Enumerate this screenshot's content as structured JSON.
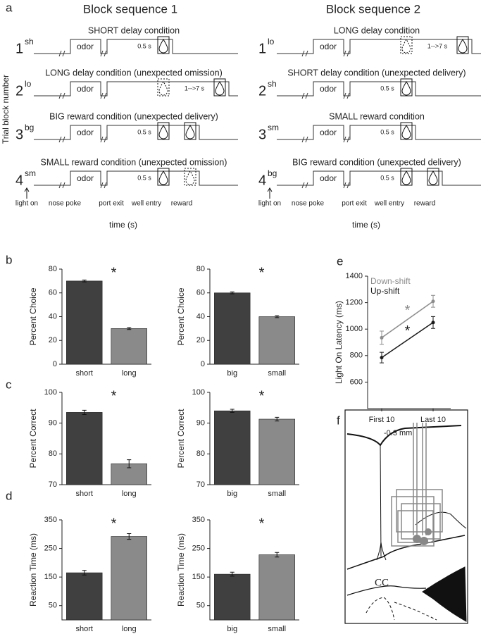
{
  "panel_labels": [
    "a",
    "b",
    "c",
    "d",
    "e",
    "f"
  ],
  "block_diagram": {
    "y_label": "Trial block number",
    "odor": "odor",
    "short_delay": "0.5 s",
    "long_delay": "1-->7 s",
    "event_labels": [
      "light on",
      "nose poke",
      "port exit",
      "well entry",
      "reward"
    ],
    "x_label": "time (s)",
    "sequences": [
      {
        "title": "Block sequence 1",
        "rows": [
          {
            "number": "1",
            "block": "sh",
            "condition": "SHORT delay condition"
          },
          {
            "number": "2",
            "block": "lo",
            "condition": "LONG delay condition (unexpected omission)"
          },
          {
            "number": "3",
            "block": "bg",
            "condition": "BIG reward condition (unexpected delivery)"
          },
          {
            "number": "4",
            "block": "sm",
            "condition": "SMALL reward condition (unexpected omission)"
          }
        ]
      },
      {
        "title": "Block sequence 2",
        "rows": [
          {
            "number": "1",
            "block": "lo",
            "condition": "LONG delay condition"
          },
          {
            "number": "2",
            "block": "sh",
            "condition": "SHORT delay condition (unexpected delivery)"
          },
          {
            "number": "3",
            "block": "sm",
            "condition": "SMALL reward condition"
          },
          {
            "number": "4",
            "block": "bg",
            "condition": "BIG reward condition (unexpected delivery)"
          }
        ]
      }
    ]
  },
  "chart_data": [
    {
      "type": "bar",
      "y_label": "Percent Choice",
      "categories": [
        "short",
        "long"
      ],
      "values": [
        70,
        30
      ],
      "errors": [
        0.8,
        0.8
      ],
      "colors": [
        "#404040",
        "#8a8a8a"
      ],
      "ylim": [
        0,
        80
      ],
      "yticks": [
        0,
        20,
        40,
        60,
        80
      ],
      "annotation": "*"
    },
    {
      "type": "bar",
      "y_label": "Percent Choice",
      "categories": [
        "big",
        "small"
      ],
      "values": [
        60,
        40
      ],
      "errors": [
        0.8,
        0.8
      ],
      "colors": [
        "#404040",
        "#8a8a8a"
      ],
      "ylim": [
        0,
        80
      ],
      "yticks": [
        0,
        20,
        40,
        60,
        80
      ],
      "annotation": "*"
    },
    {
      "type": "bar",
      "y_label": "Percent Correct",
      "categories": [
        "short",
        "long"
      ],
      "values": [
        93.5,
        76.8
      ],
      "errors": [
        0.7,
        1.3
      ],
      "colors": [
        "#404040",
        "#8a8a8a"
      ],
      "ylim": [
        70,
        100
      ],
      "yticks": [
        70,
        80,
        90,
        100
      ],
      "annotation": "*"
    },
    {
      "type": "bar",
      "y_label": "Percent Correct",
      "categories": [
        "big",
        "small"
      ],
      "values": [
        94,
        91.3
      ],
      "errors": [
        0.5,
        0.6
      ],
      "colors": [
        "#404040",
        "#8a8a8a"
      ],
      "ylim": [
        70,
        100
      ],
      "yticks": [
        70,
        80,
        90,
        100
      ],
      "annotation": "*"
    },
    {
      "type": "bar",
      "y_label": "Reaction Time (ms)",
      "categories": [
        "short",
        "long"
      ],
      "values": [
        165,
        292
      ],
      "errors": [
        8,
        10
      ],
      "colors": [
        "#404040",
        "#8a8a8a"
      ],
      "ylim": [
        0,
        350
      ],
      "yticks": [
        50,
        150,
        250,
        350
      ],
      "annotation": "*"
    },
    {
      "type": "bar",
      "y_label": "Reaction Time (ms)",
      "categories": [
        "big",
        "small"
      ],
      "values": [
        160,
        228
      ],
      "errors": [
        7,
        8
      ],
      "colors": [
        "#404040",
        "#8a8a8a"
      ],
      "ylim": [
        0,
        350
      ],
      "yticks": [
        50,
        150,
        250,
        350
      ],
      "annotation": "*"
    },
    {
      "type": "line",
      "y_label": "Light On Latency (ms)",
      "categories": [
        "First 10",
        "Last 10"
      ],
      "series": [
        {
          "name": "Down-shift",
          "color": "#8c8c8c",
          "values": [
            935,
            1210
          ],
          "errors": [
            50,
            45
          ]
        },
        {
          "name": "Up-shift",
          "color": "#1a1a1a",
          "values": [
            785,
            1050
          ],
          "errors": [
            40,
            45
          ]
        }
      ],
      "ylim": [
        400,
        1400
      ],
      "yticks": [
        600,
        800,
        1000,
        1200,
        1400
      ],
      "annotations": [
        "*",
        "*"
      ]
    }
  ],
  "histology": {
    "depth": "-0.3 mm",
    "region": "CC"
  }
}
